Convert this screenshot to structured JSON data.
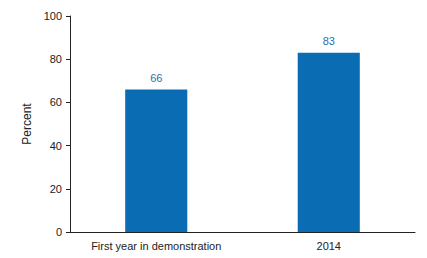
{
  "chart_data": {
    "type": "bar",
    "categories": [
      "First year in demonstration",
      "2014"
    ],
    "values": [
      66,
      83
    ],
    "color": "#0a6cb3",
    "ylabel": "Percent",
    "ylim": [
      0,
      100
    ],
    "yticks": [
      0,
      20,
      40,
      60,
      80,
      100
    ],
    "grid": false,
    "data_labels": true
  }
}
